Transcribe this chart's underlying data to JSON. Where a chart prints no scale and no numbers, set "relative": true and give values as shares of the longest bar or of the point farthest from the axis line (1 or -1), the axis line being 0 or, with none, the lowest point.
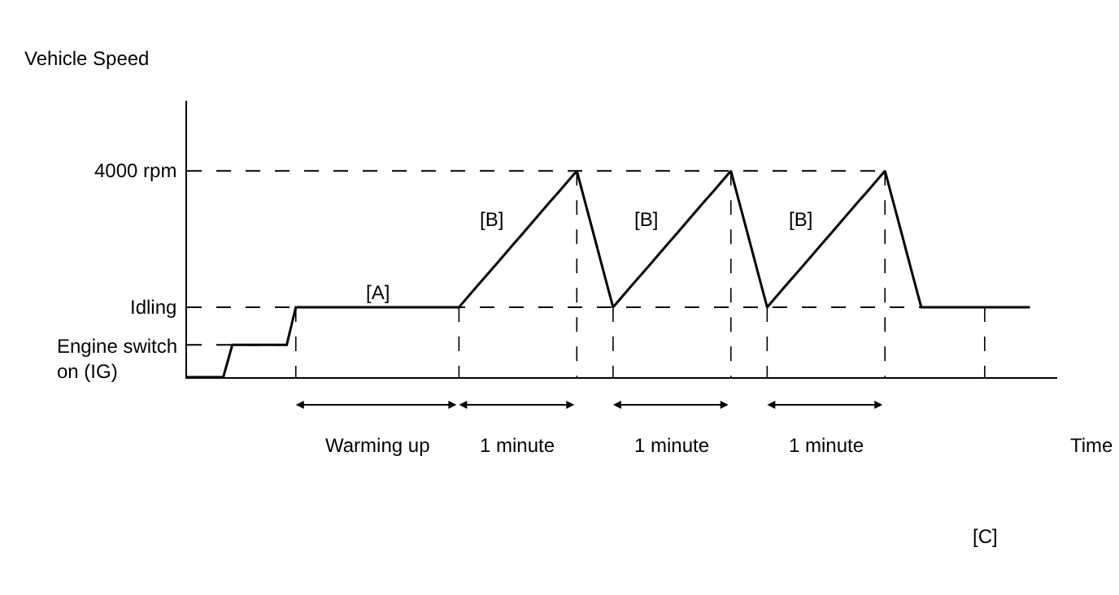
{
  "chart_data": {
    "type": "line",
    "relative": true,
    "xlabel": "Time",
    "categories": [
      null,
      null,
      null,
      null,
      null,
      null,
      null,
      null,
      null,
      null,
      null,
      null,
      null,
      null,
      null,
      null,
      null,
      null,
      null,
      null,
      null,
      null,
      null,
      null,
      null,
      null,
      null,
      null,
      null,
      null,
      null,
      null,
      null,
      null,
      null,
      null,
      null,
      null,
      null,
      null,
      null,
      null,
      null,
      null,
      null,
      null,
      null,
      null,
      null,
      null,
      null,
      null,
      null,
      null,
      null,
      null,
      null,
      null,
      null,
      null,
      null,
      null,
      null,
      null,
      null,
      null,
      null,
      null,
      null,
      null,
      null,
      null,
      null,
      null,
      null,
      null,
      null,
      null,
      null,
      null,
      null,
      null,
      null,
      null,
      null,
      null,
      null,
      null,
      null,
      null,
      null,
      null,
      null,
      null
    ],
    "series": [
      {
        "color": "#000000",
        "values": [
          0,
          0,
          0,
          0,
          0,
          0.157,
          0.157,
          0.157,
          0.157,
          0.157,
          0.157,
          0.157,
          0.339,
          0.339,
          0.339,
          0.339,
          0.339,
          0.339,
          0.339,
          0.339,
          0.339,
          0.339,
          0.339,
          0.339,
          0.339,
          0.339,
          0.339,
          0.339,
          0.339,
          0.339,
          0.339,
          0.39,
          0.441,
          0.492,
          0.542,
          0.593,
          0.644,
          0.695,
          0.746,
          0.797,
          0.848,
          0.898,
          0.949,
          1,
          0.835,
          0.67,
          0.504,
          0.339,
          0.39,
          0.441,
          0.492,
          0.542,
          0.593,
          0.644,
          0.695,
          0.746,
          0.797,
          0.848,
          0.898,
          0.949,
          1,
          0.835,
          0.67,
          0.504,
          0.339,
          0.39,
          0.441,
          0.492,
          0.542,
          0.593,
          0.644,
          0.695,
          0.746,
          0.797,
          0.848,
          0.898,
          0.949,
          1,
          0.835,
          0.67,
          0.504,
          0.339,
          0.339,
          0.339,
          0.339,
          0.339,
          0.339,
          0.339,
          0.339,
          0.339,
          0.339,
          0.339,
          0.339,
          0.339
        ]
      }
    ],
    "marker": "none",
    "line_style": "solid",
    "grid": "x",
    "ref_lines": [
      {
        "axis": "y",
        "value": 0.157,
        "label": "Engine switch\non (IG)",
        "line_style": "dashed"
      },
      {
        "axis": "y",
        "value": 0.339,
        "label": "Idling",
        "line_style": "dashed"
      },
      {
        "axis": "y",
        "value": 1,
        "label": "4000 rpm",
        "line_style": "dashed"
      }
    ],
    "annotations": [
      "Vehicle Speed",
      "Warming up",
      "1 minute",
      "1 minute",
      "1 minute",
      "[C]",
      "[B]",
      "[B]",
      "[B]",
      {
        "text": "[A]",
        "y": 0.339
      }
    ]
  }
}
